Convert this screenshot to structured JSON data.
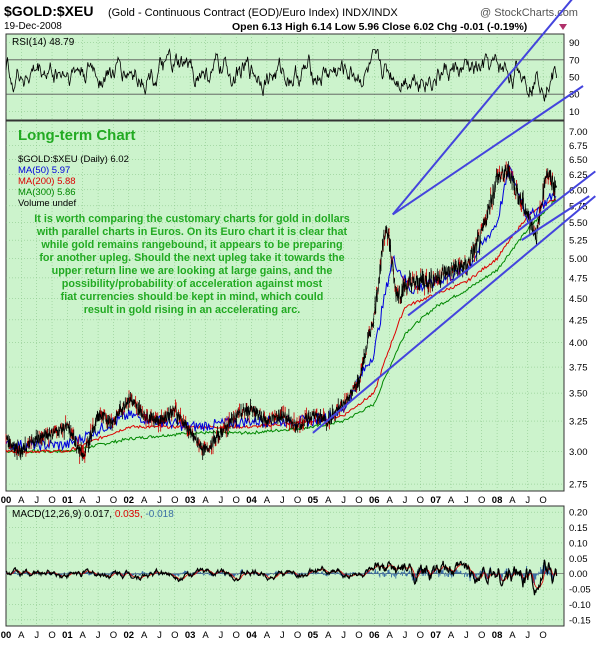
{
  "header": {
    "title": "$GOLD:$XEU",
    "subtitle": "(Gold - Continuous Contract (EOD)/Euro Index)  INDX/INDX",
    "brand": "@ StockCharts.com",
    "date": "19-Dec-2008",
    "ohlc": "Open 6.13  High 6.14  Low 5.96  Close 6.02  Chg -0.01 (-0.19%)"
  },
  "colors": {
    "panel_bg": "#ccf3cc",
    "grid": "#7fbf7f",
    "price": "#000000",
    "ma50": "#0000dd",
    "ma200": "#dd0000",
    "ma300": "#008800",
    "trend": "#4444dd",
    "annotation": "#22aa22",
    "macd_hist": "#3a6ea5"
  },
  "rsi_panel": {
    "label": "RSI(14) 48.79",
    "ticks": [
      "90",
      "70",
      "50",
      "30",
      "10"
    ]
  },
  "price_panel": {
    "heading": "Long-term Chart",
    "legend": [
      "$GOLD:$XEU (Daily) 6.02",
      "MA(50) 5.97",
      "MA(200) 5.88",
      "MA(300) 5.86",
      "Volume undef"
    ],
    "annotation": [
      "It is worth comparing the customary charts for gold in dollars",
      "with parallel charts in Euros. On its Euro chart it is clear that",
      "while gold remains rangebound, it appears to be preparing",
      "for another upleg. Should the next upleg take it towards the",
      "upper return line we are looking at large gains, and the",
      "possibility/probability of acceleration against most",
      "fiat currencies should be kept in mind, which could",
      "result in gold rising in an accelerating arc."
    ]
  },
  "macd_panel": {
    "label_name": "MACD(12,26,9)",
    "label_v1": "0.017,",
    "label_v2": "0.035,",
    "label_v3": "-0.018",
    "ticks": [
      "0.20",
      "0.15",
      "0.10",
      "0.05",
      "0.00",
      "-0.05",
      "-0.10",
      "-0.15"
    ]
  },
  "chart_data": {
    "type": "line",
    "title": "$GOLD:$XEU",
    "y_scale": "log",
    "ylim": [
      2.7,
      7.2
    ],
    "y_ticks": [
      2.75,
      3.0,
      3.25,
      3.5,
      3.75,
      4.0,
      4.25,
      4.5,
      4.75,
      5.0,
      5.25,
      5.5,
      5.75,
      6.0,
      6.25,
      6.5,
      6.75,
      7.0
    ],
    "x_ticks": [
      "00",
      "A",
      "J",
      "O",
      "01",
      "A",
      "J",
      "O",
      "02",
      "A",
      "J",
      "O",
      "03",
      "A",
      "J",
      "O",
      "04",
      "A",
      "J",
      "O",
      "05",
      "A",
      "J",
      "O",
      "06",
      "A",
      "J",
      "O",
      "07",
      "A",
      "J",
      "O",
      "08",
      "A",
      "J",
      "O"
    ],
    "x_range": [
      "2000-01",
      "2008-12"
    ],
    "series": [
      {
        "name": "$GOLD:$XEU",
        "x": [
          2000.0,
          2000.25,
          2000.5,
          2000.75,
          2001.0,
          2001.25,
          2001.5,
          2001.75,
          2002.0,
          2002.25,
          2002.5,
          2002.75,
          2003.0,
          2003.25,
          2003.5,
          2003.75,
          2004.0,
          2004.25,
          2004.5,
          2004.75,
          2005.0,
          2005.25,
          2005.5,
          2005.75,
          2006.0,
          2006.2,
          2006.35,
          2006.5,
          2006.75,
          2007.0,
          2007.25,
          2007.5,
          2007.75,
          2008.0,
          2008.2,
          2008.35,
          2008.5,
          2008.65,
          2008.8,
          2008.97
        ],
        "values": [
          3.1,
          3.0,
          3.1,
          3.15,
          3.2,
          2.95,
          3.3,
          3.25,
          3.45,
          3.3,
          3.25,
          3.35,
          3.15,
          3.0,
          3.15,
          3.3,
          3.35,
          3.25,
          3.3,
          3.2,
          3.3,
          3.25,
          3.4,
          3.6,
          4.3,
          5.5,
          4.55,
          4.65,
          4.7,
          4.75,
          4.85,
          4.9,
          5.3,
          6.2,
          6.3,
          5.9,
          5.6,
          5.3,
          6.3,
          6.02
        ]
      },
      {
        "name": "MA(50)",
        "x": [
          2000.0,
          2001.0,
          2002.0,
          2003.0,
          2004.0,
          2005.0,
          2005.5,
          2006.0,
          2006.3,
          2006.6,
          2007.0,
          2007.5,
          2008.0,
          2008.2,
          2008.5,
          2008.97
        ],
        "values": [
          3.05,
          3.05,
          3.3,
          3.2,
          3.25,
          3.25,
          3.35,
          3.9,
          5.0,
          4.6,
          4.7,
          4.85,
          5.5,
          6.35,
          5.55,
          5.97
        ]
      },
      {
        "name": "MA(200)",
        "x": [
          2000.0,
          2001.0,
          2002.0,
          2003.0,
          2004.0,
          2005.0,
          2005.5,
          2006.0,
          2006.5,
          2007.0,
          2007.5,
          2008.0,
          2008.5,
          2008.97
        ],
        "values": [
          3.0,
          3.0,
          3.2,
          3.2,
          3.2,
          3.25,
          3.3,
          3.5,
          4.4,
          4.55,
          4.7,
          5.0,
          5.6,
          5.88
        ]
      },
      {
        "name": "MA(300)",
        "x": [
          2000.0,
          2001.0,
          2002.0,
          2003.0,
          2004.0,
          2005.0,
          2005.5,
          2006.0,
          2006.5,
          2007.0,
          2007.5,
          2008.0,
          2008.5,
          2008.97
        ],
        "values": [
          3.0,
          3.0,
          3.1,
          3.15,
          3.15,
          3.2,
          3.25,
          3.4,
          4.1,
          4.4,
          4.6,
          4.85,
          5.4,
          5.86
        ]
      }
    ],
    "trendlines": [
      {
        "x": [
          2006.3,
          2009.4
        ],
        "values": [
          5.62,
          7.9
        ]
      },
      {
        "x": [
          2006.3,
          2009.5
        ],
        "values": [
          5.62,
          10.5
        ]
      },
      {
        "x": [
          2005.0,
          2009.6
        ],
        "values": [
          3.15,
          5.9
        ]
      },
      {
        "x": [
          2006.55,
          2009.6
        ],
        "values": [
          4.3,
          6.3
        ]
      },
      {
        "x": [
          2008.4,
          2009.5
        ],
        "values": [
          5.25,
          5.9
        ]
      }
    ],
    "rsi": {
      "ylim": [
        0,
        100
      ],
      "levels": [
        30,
        70
      ],
      "last": 48.79
    },
    "macd": {
      "ylim": [
        -0.17,
        0.22
      ],
      "macd": 0.017,
      "signal": 0.035,
      "hist": -0.018
    },
    "grid": true,
    "legend_position": "top-left"
  }
}
